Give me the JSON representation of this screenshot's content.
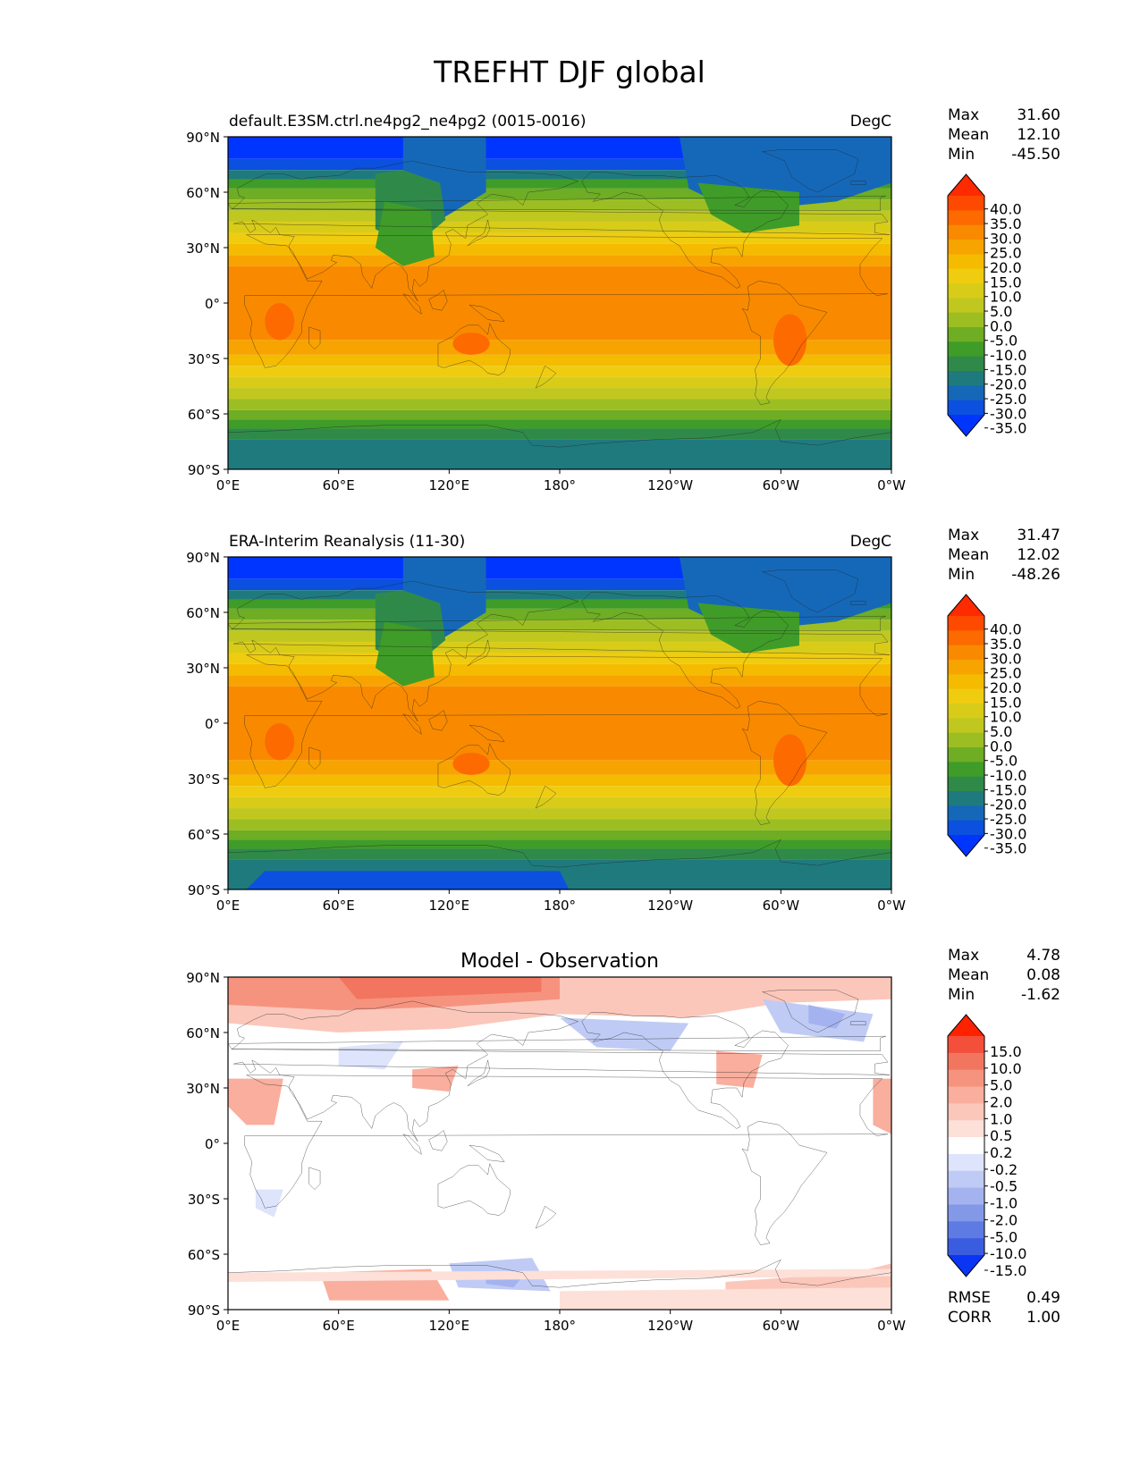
{
  "figure": {
    "title": "TREFHT DJF global"
  },
  "tick_labels": {
    "lat": [
      "90°N",
      "60°N",
      "30°N",
      "0°",
      "30°S",
      "60°S",
      "90°S"
    ],
    "lon": [
      "0°E",
      "60°E",
      "120°E",
      "180°",
      "120°W",
      "60°W",
      "0°W"
    ]
  },
  "panels": [
    {
      "left_title": "default.E3SM.ctrl.ne4pg2_ne4pg2 (0015-0016)",
      "center_title": "",
      "units": "DegC",
      "stats": {
        "max_label": "Max",
        "max": "31.60",
        "mean_label": "Mean",
        "mean": "12.10",
        "min_label": "Min",
        "min": "-45.50"
      },
      "colorbar": {
        "levels": [
          "40.0",
          "35.0",
          "30.0",
          "25.0",
          "20.0",
          "15.0",
          "10.0",
          "5.0",
          "0.0",
          "-5.0",
          "-10.0",
          "-15.0",
          "-20.0",
          "-25.0",
          "-30.0",
          "-35.0"
        ],
        "colors": [
          "#ff2a00",
          "#fe4a00",
          "#fc6a00",
          "#f98a00",
          "#f7a300",
          "#f5bb00",
          "#f0cc10",
          "#d8cc18",
          "#c0c820",
          "#9cbe22",
          "#6ead24",
          "#3f9c28",
          "#2f8a4a",
          "#1f7a7e",
          "#1568b8",
          "#0b50de",
          "#0035ff"
        ]
      },
      "field": "model"
    },
    {
      "left_title": "ERA-Interim Reanalysis (11-30)",
      "center_title": "",
      "units": "DegC",
      "stats": {
        "max_label": "Max",
        "max": "31.47",
        "mean_label": "Mean",
        "mean": "12.02",
        "min_label": "Min",
        "min": "-48.26"
      },
      "colorbar": {
        "levels": [
          "40.0",
          "35.0",
          "30.0",
          "25.0",
          "20.0",
          "15.0",
          "10.0",
          "5.0",
          "0.0",
          "-5.0",
          "-10.0",
          "-15.0",
          "-20.0",
          "-25.0",
          "-30.0",
          "-35.0"
        ],
        "colors": [
          "#ff2a00",
          "#fe4a00",
          "#fc6a00",
          "#f98a00",
          "#f7a300",
          "#f5bb00",
          "#f0cc10",
          "#d8cc18",
          "#c0c820",
          "#9cbe22",
          "#6ead24",
          "#3f9c28",
          "#2f8a4a",
          "#1f7a7e",
          "#1568b8",
          "#0b50de",
          "#0035ff"
        ]
      },
      "field": "obs"
    },
    {
      "left_title": "",
      "center_title": "Model - Observation",
      "units": "",
      "stats": {
        "max_label": "Max",
        "max": "4.78",
        "mean_label": "Mean",
        "mean": "0.08",
        "min_label": "Min",
        "min": "-1.62"
      },
      "colorbar": {
        "levels": [
          "15.0",
          "10.0",
          "5.0",
          "2.0",
          "1.0",
          "0.5",
          "0.2",
          "-0.2",
          "-0.5",
          "-1.0",
          "-2.0",
          "-5.0",
          "-10.0",
          "-15.0"
        ],
        "colors": [
          "#ff2200",
          "#f44f3a",
          "#f27560",
          "#f6937f",
          "#f9ae9e",
          "#fbc7bb",
          "#fde0d8",
          "#ffffff",
          "#dde4fb",
          "#c0cbf5",
          "#a4b3ef",
          "#8399e8",
          "#5e7be3",
          "#3a5de0",
          "#0b35f5"
        ]
      },
      "field": "diff",
      "extra_stats": {
        "rmse_label": "RMSE",
        "rmse": "0.49",
        "corr_label": "CORR",
        "corr": "1.00"
      }
    }
  ]
}
